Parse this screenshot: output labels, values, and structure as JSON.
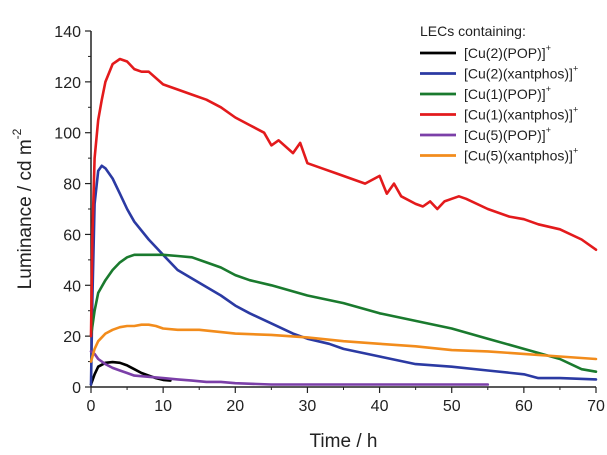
{
  "chart_data": {
    "type": "line",
    "xlabel": "Time / h",
    "ylabel": "Luminance / cd m",
    "ylabel_sup": "-2",
    "xlim": [
      0,
      70
    ],
    "ylim": [
      0,
      140
    ],
    "xticks": [
      0,
      10,
      20,
      30,
      40,
      50,
      60,
      70
    ],
    "yticks": [
      0,
      20,
      40,
      60,
      80,
      100,
      120,
      140
    ],
    "grid": false,
    "legend": {
      "placement": "top-right",
      "title": "LECs containing:"
    },
    "series": [
      {
        "name": "[Cu(2)(POP)]",
        "sup": "+",
        "color": "#000000",
        "x": [
          0,
          0.5,
          1,
          2,
          3,
          4,
          5,
          6,
          7,
          8,
          9,
          10,
          11
        ],
        "y": [
          1,
          5,
          8,
          9.5,
          9.8,
          9.5,
          8.5,
          7,
          5.5,
          4.5,
          3.5,
          2.8,
          2.5
        ]
      },
      {
        "name": "[Cu(2)(xantphos)]",
        "sup": "+",
        "color": "#2b3aa3",
        "x": [
          0,
          0.2,
          0.5,
          1,
          1.5,
          2,
          3,
          4,
          5,
          6,
          8,
          10,
          12,
          15,
          18,
          20,
          22,
          25,
          28,
          30,
          33,
          35,
          40,
          45,
          50,
          55,
          60,
          62,
          65,
          70
        ],
        "y": [
          1,
          35,
          72,
          85,
          87,
          86,
          82,
          76,
          70,
          65,
          58,
          52,
          46,
          41,
          36,
          32,
          29,
          25,
          21,
          19,
          17,
          15,
          12,
          9,
          8,
          6.5,
          5,
          3.5,
          3.5,
          3
        ]
      },
      {
        "name": "[Cu(1)(POP)]",
        "sup": "+",
        "color": "#1a7a2e",
        "x": [
          0,
          0.5,
          1,
          2,
          3,
          4,
          5,
          6,
          7,
          8,
          10,
          12,
          14,
          16,
          18,
          20,
          22,
          25,
          30,
          35,
          40,
          45,
          50,
          55,
          60,
          65,
          68,
          70
        ],
        "y": [
          20,
          30,
          37,
          42,
          46,
          49,
          51,
          52,
          52,
          52,
          52,
          51.5,
          51,
          49,
          47,
          44,
          42,
          40,
          36,
          33,
          29,
          26,
          23,
          19,
          15,
          11,
          7,
          6
        ]
      },
      {
        "name": "[Cu(1)(xantphos)]",
        "sup": "+",
        "color": "#e31a1c",
        "x": [
          0,
          0.2,
          0.5,
          1,
          1.5,
          2,
          3,
          4,
          5,
          6,
          7,
          8,
          10,
          12,
          14,
          16,
          18,
          20,
          22,
          24,
          25,
          26,
          28,
          29,
          30,
          32,
          34,
          36,
          38,
          40,
          41,
          42,
          43,
          45,
          46,
          47,
          48,
          49,
          50,
          51,
          52,
          55,
          58,
          60,
          62,
          65,
          68,
          70
        ],
        "y": [
          20,
          60,
          90,
          105,
          113,
          120,
          127,
          129,
          128,
          125,
          124,
          124,
          119,
          117,
          115,
          113,
          110,
          106,
          103,
          100,
          95,
          97,
          92,
          96,
          88,
          86,
          84,
          82,
          80,
          83,
          76,
          80,
          75,
          72,
          71,
          73,
          70,
          73,
          74,
          75,
          74,
          70,
          67,
          66,
          64,
          62,
          58,
          54
        ]
      },
      {
        "name": "[Cu(5)(POP)]",
        "sup": "+",
        "color": "#7b3fa8",
        "x": [
          0,
          0.5,
          1,
          2,
          3,
          4,
          5,
          6,
          8,
          10,
          12,
          14,
          16,
          18,
          20,
          25,
          30,
          40,
          50,
          55
        ],
        "y": [
          14,
          13,
          11,
          9,
          7.5,
          6.5,
          5.5,
          4.5,
          4,
          3.5,
          3,
          2.5,
          2,
          2,
          1.5,
          1,
          1,
          1,
          1,
          1
        ]
      },
      {
        "name": "[Cu(5)(xantphos)]",
        "sup": "+",
        "color": "#f28c1c",
        "x": [
          0,
          0.5,
          1,
          2,
          3,
          4,
          5,
          6,
          7,
          8,
          9,
          10,
          12,
          15,
          20,
          25,
          30,
          35,
          40,
          45,
          50,
          55,
          60,
          65,
          70
        ],
        "y": [
          10,
          15,
          18,
          21,
          22.5,
          23.5,
          24,
          24,
          24.5,
          24.5,
          24,
          23,
          22.5,
          22.5,
          21,
          20.5,
          19.5,
          18,
          17,
          16,
          14.5,
          14,
          13,
          12,
          11
        ]
      }
    ]
  }
}
